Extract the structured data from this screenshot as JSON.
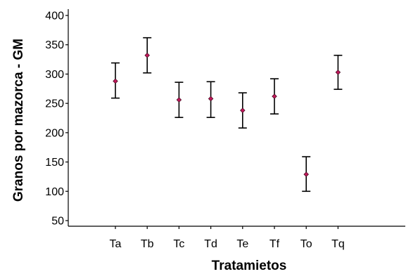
{
  "chart_data": {
    "type": "scatter",
    "subtype": "error-bar",
    "title": "",
    "xlabel": "Tratamietos",
    "ylabel": "Granos por mazorca - GM",
    "ylim": [
      40,
      405
    ],
    "yticks": [
      50,
      100,
      150,
      200,
      250,
      300,
      350,
      400
    ],
    "grid": false,
    "legend": "none",
    "marker_color": "#c2185b",
    "categories": [
      "Ta",
      "Tb",
      "Tc",
      "Td",
      "Te",
      "Tf",
      "To",
      "Tq"
    ],
    "series": [
      {
        "mean": [
          288,
          332,
          256,
          258,
          238,
          262,
          129,
          303
        ],
        "lower": [
          259,
          302,
          226,
          226,
          208,
          232,
          100,
          274
        ],
        "upper": [
          319,
          362,
          286,
          287,
          268,
          292,
          159,
          332
        ]
      }
    ]
  }
}
